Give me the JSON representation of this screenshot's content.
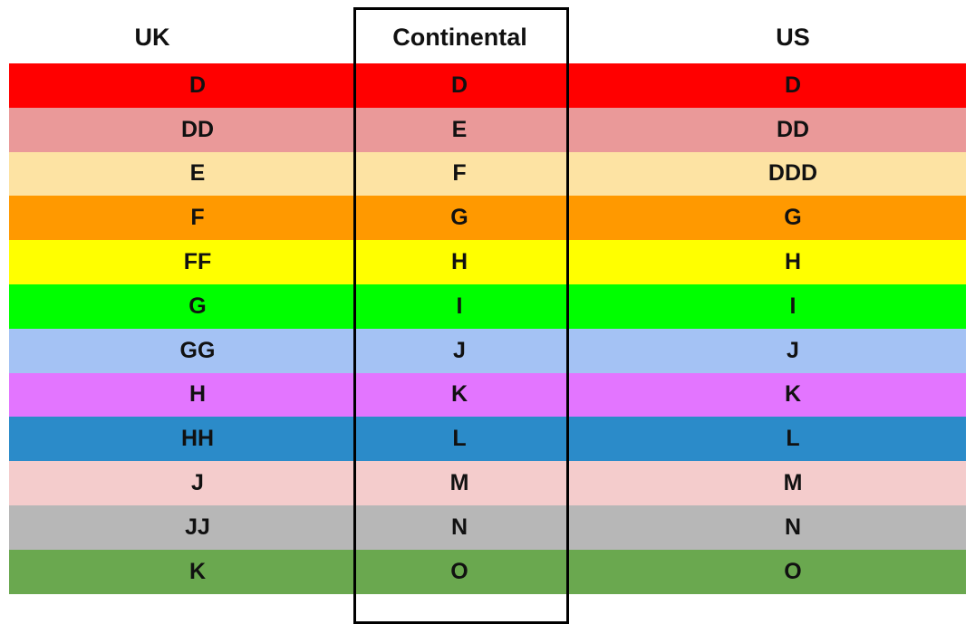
{
  "headers": [
    "UK",
    "Continental",
    "US"
  ],
  "rows": [
    {
      "uk": "D",
      "continental": "D",
      "us": "D",
      "color": "#ff0000"
    },
    {
      "uk": "DD",
      "continental": "E",
      "us": "DD",
      "color": "#ea9999"
    },
    {
      "uk": "E",
      "continental": "F",
      "us": "DDD",
      "color": "#fde3a3"
    },
    {
      "uk": "F",
      "continental": "G",
      "us": "G",
      "color": "#ff9900"
    },
    {
      "uk": "FF",
      "continental": "H",
      "us": "H",
      "color": "#ffff00"
    },
    {
      "uk": "G",
      "continental": "I",
      "us": "I",
      "color": "#00ff00"
    },
    {
      "uk": "GG",
      "continental": "J",
      "us": "J",
      "color": "#a4c2f4"
    },
    {
      "uk": "H",
      "continental": "K",
      "us": "K",
      "color": "#e375ff"
    },
    {
      "uk": "HH",
      "continental": "L",
      "us": "L",
      "color": "#2b8bc9"
    },
    {
      "uk": "J",
      "continental": "M",
      "us": "M",
      "color": "#f4cccc"
    },
    {
      "uk": "JJ",
      "continental": "N",
      "us": "N",
      "color": "#b7b7b7"
    },
    {
      "uk": "K",
      "continental": "O",
      "us": "O",
      "color": "#6aa84f"
    }
  ]
}
